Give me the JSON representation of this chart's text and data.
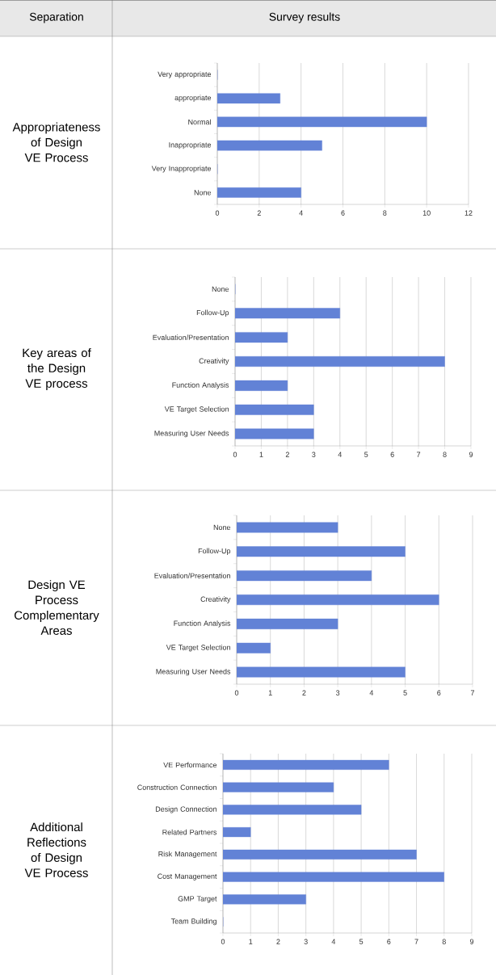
{
  "chart_data": [
    {
      "type": "bar",
      "orientation": "horizontal",
      "title": "Appropriateness of Design VE Process",
      "annotations": [
        "Separation",
        "Survey results"
      ],
      "categories": [
        "Very appropriate",
        "appropriate",
        "Normal",
        "Inappropriate",
        "Very Inappropriate",
        "None"
      ],
      "values": [
        0,
        3,
        10,
        5,
        0,
        4
      ],
      "color": "#6282d6",
      "xlim": [
        0,
        12
      ],
      "xticks": [
        0,
        2,
        4,
        6,
        8,
        10,
        12
      ],
      "grid": "x"
    },
    {
      "type": "bar",
      "orientation": "horizontal",
      "title": "Key areas of the Design VE process",
      "categories": [
        "None",
        "Follow-Up",
        "Evaluation/Presentation",
        "Creativity",
        "Function Analysis",
        "VE Target Selection",
        "Measuring User Needs"
      ],
      "values": [
        0,
        4,
        2,
        8,
        2,
        3,
        3
      ],
      "color": "#6282d6",
      "xlim": [
        0,
        9
      ],
      "xticks": [
        0,
        1,
        2,
        3,
        4,
        5,
        6,
        7,
        8,
        9
      ],
      "grid": "x"
    },
    {
      "type": "bar",
      "orientation": "horizontal",
      "title": "Design VE Process Complementary Areas",
      "categories": [
        "None",
        "Follow-Up",
        "Evaluation/Presentation",
        "Creativity",
        "Function Analysis",
        "VE Target Selection",
        "Measuring User Needs"
      ],
      "values": [
        3,
        5,
        4,
        6,
        3,
        1,
        5
      ],
      "color": "#6282d6",
      "xlim": [
        0,
        7
      ],
      "xticks": [
        0,
        1,
        2,
        3,
        4,
        5,
        6,
        7
      ],
      "grid": "x"
    },
    {
      "type": "bar",
      "orientation": "horizontal",
      "title": "Additional Reflections of Design VE Process",
      "categories": [
        "VE Performance",
        "Construction Connection",
        "Design Connection",
        "Related Partners",
        "Risk Management",
        "Cost Management",
        "GMP Target",
        "Team Building"
      ],
      "values": [
        6,
        4,
        5,
        1,
        7,
        8,
        3,
        0
      ],
      "color": "#6282d6",
      "xlim": [
        0,
        9
      ],
      "xticks": [
        0,
        1,
        2,
        3,
        4,
        5,
        6,
        7,
        8,
        9
      ],
      "grid": "x"
    }
  ]
}
